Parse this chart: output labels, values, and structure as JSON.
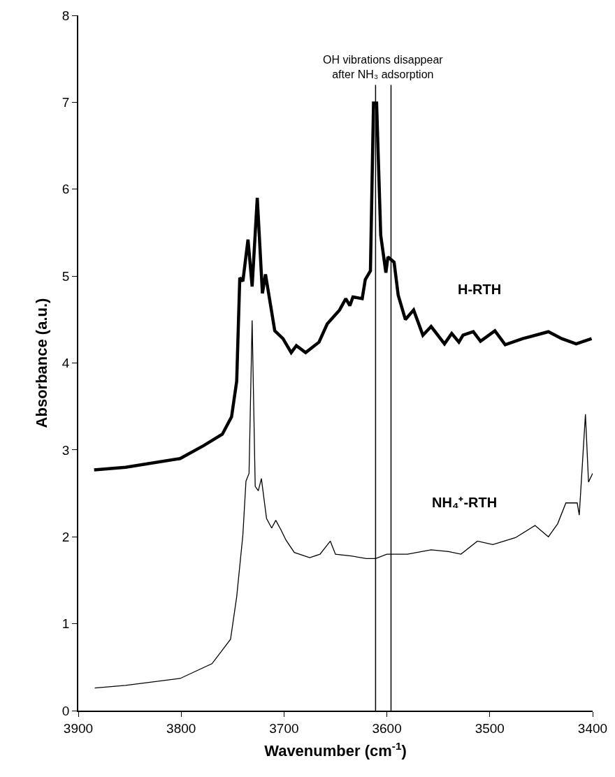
{
  "chart_data": {
    "type": "line",
    "xlabel": "Wavenumber (cm$^{-1}$)",
    "ylabel": "Absorbance (a.u.)",
    "xlim": [
      3900,
      3400
    ],
    "xticks": [
      3900,
      3800,
      3700,
      3600,
      3500,
      3400
    ],
    "ylim": [
      0,
      8
    ],
    "yticks": [
      0,
      1,
      2,
      3,
      4,
      5,
      6,
      7,
      8
    ],
    "grid": false,
    "legend": false,
    "marker": "none",
    "line_style": "solid",
    "series": [
      {
        "name": "H-RTH",
        "color": "#000000",
        "x": [
          3884.6,
          3854,
          3801,
          3778,
          3760,
          3751,
          3746,
          3743,
          3740,
          3735,
          3731,
          3726,
          3721,
          3718,
          3713,
          3709,
          3701,
          3693,
          3688,
          3679,
          3666,
          3658,
          3646,
          3640,
          3636,
          3633,
          3624,
          3621,
          3616,
          3613,
          3610,
          3606,
          3601,
          3599,
          3593,
          3589,
          3582,
          3574,
          3565,
          3557,
          3544,
          3537,
          3530,
          3526,
          3516,
          3509,
          3495,
          3485,
          3468,
          3443,
          3430,
          3416,
          3401
        ],
        "values": [
          2.77,
          2.8,
          2.9,
          3.05,
          3.18,
          3.38,
          3.79,
          4.98,
          4.94,
          5.42,
          4.88,
          5.9,
          4.8,
          5.02,
          4.66,
          4.37,
          4.28,
          4.12,
          4.2,
          4.12,
          4.24,
          4.45,
          4.61,
          4.74,
          4.66,
          4.76,
          4.74,
          4.96,
          5.06,
          6.99,
          6.99,
          5.47,
          5.04,
          5.22,
          5.16,
          4.78,
          4.5,
          4.61,
          4.32,
          4.42,
          4.22,
          4.34,
          4.24,
          4.32,
          4.36,
          4.25,
          4.37,
          4.21,
          4.28,
          4.36,
          4.28,
          4.22,
          4.28
        ]
      },
      {
        "name": "NH₄⁺-RTH",
        "color": "#000000",
        "x": [
          3884,
          3854,
          3801,
          3770,
          3752,
          3746,
          3740,
          3737,
          3734,
          3731,
          3728,
          3725,
          3722,
          3717,
          3712,
          3708,
          3703,
          3698,
          3690,
          3675,
          3665,
          3655,
          3650,
          3635,
          3620,
          3611,
          3600,
          3580,
          3557,
          3540,
          3528,
          3512,
          3497,
          3475,
          3456,
          3443,
          3434,
          3426,
          3415,
          3413,
          3407,
          3404,
          3400
        ],
        "values": [
          0.26,
          0.29,
          0.37,
          0.54,
          0.82,
          1.31,
          2.02,
          2.64,
          2.73,
          4.49,
          2.58,
          2.53,
          2.67,
          2.21,
          2.1,
          2.19,
          2.08,
          1.96,
          1.82,
          1.76,
          1.8,
          1.95,
          1.8,
          1.78,
          1.75,
          1.75,
          1.8,
          1.8,
          1.85,
          1.83,
          1.8,
          1.95,
          1.91,
          1.99,
          2.13,
          2.0,
          2.15,
          2.39,
          2.39,
          2.25,
          3.41,
          2.63,
          2.73
        ]
      }
    ],
    "ref_lines": [
      {
        "axis": "x",
        "value": 3611,
        "color": "#000000",
        "line_style": "solid"
      },
      {
        "axis": "x",
        "value": 3596,
        "color": "#000000",
        "line_style": "solid"
      }
    ],
    "annotations": [
      "OH vibrations disappear\nafter NH₃ adsorption"
    ]
  }
}
